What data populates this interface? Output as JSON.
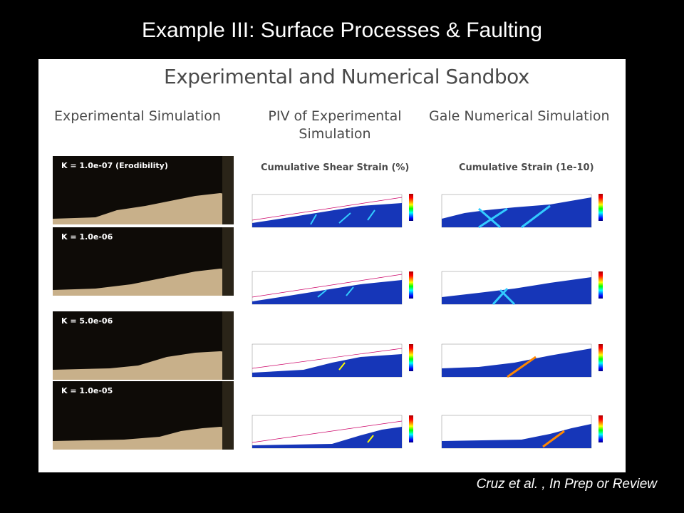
{
  "slide": {
    "title": "Example III: Surface Processes & Faulting",
    "citation": "Cruz et al. , In Prep or Review"
  },
  "figure": {
    "title": "Experimental and Numerical Sandbox",
    "columns": [
      {
        "heading": "Experimental Simulation"
      },
      {
        "heading": "PIV of Experimental Simulation",
        "subheading": "Cumulative Shear Strain (%)"
      },
      {
        "heading": "Gale Numerical Simulation",
        "subheading": "Cumulative Strain (1e-10)"
      }
    ],
    "photos": [
      {
        "label": "K = 1.0e-07 (Erodibility)"
      },
      {
        "label": "K = 1.0e-06"
      },
      {
        "label": "K = 5.0e-06"
      },
      {
        "label": "K = 1.0e-05"
      }
    ]
  }
}
